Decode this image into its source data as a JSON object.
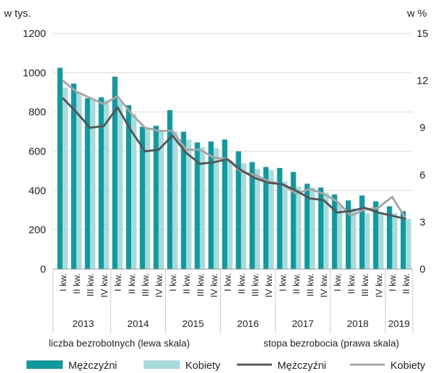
{
  "chart_data": {
    "type": "bar+line",
    "left_axis_label": "w tys.",
    "right_axis_label": "w %",
    "left_ylim": [
      0,
      1200
    ],
    "left_ticks": [
      "0",
      "200",
      "400",
      "600",
      "800",
      "1000",
      "1200"
    ],
    "right_ylim": [
      0,
      15
    ],
    "right_ticks": [
      "0",
      "3",
      "6",
      "9",
      "12",
      "15"
    ],
    "grid": true,
    "quarters": [
      "I kw.",
      "II kw.",
      "III kw.",
      "IV kw.",
      "I kw.",
      "II kw.",
      "III kw.",
      "IV kw.",
      "I kw.",
      "II kw.",
      "III kw.",
      "IV kw.",
      "I kw.",
      "II kw.",
      "III kw.",
      "IV kw.",
      "I kw.",
      "II kw.",
      "III kw.",
      "IV kw.",
      "I kw.",
      "II kw.",
      "III kw.",
      "IV kw.",
      "I kw.",
      "II kw."
    ],
    "years": [
      {
        "label": "2013",
        "quarters": 4
      },
      {
        "label": "2014",
        "quarters": 4
      },
      {
        "label": "2015",
        "quarters": 4
      },
      {
        "label": "2016",
        "quarters": 4
      },
      {
        "label": "2017",
        "quarters": 4
      },
      {
        "label": "2018",
        "quarters": 4
      },
      {
        "label": "2019",
        "quarters": 2
      }
    ],
    "bar_series": [
      {
        "name": "Mężczyźni",
        "color": "#0f9aa0",
        "values": [
          1025,
          945,
          870,
          875,
          980,
          835,
          725,
          730,
          810,
          700,
          645,
          650,
          660,
          600,
          545,
          520,
          515,
          495,
          435,
          415,
          380,
          350,
          375,
          345,
          320,
          295
        ]
      },
      {
        "name": "Kobiety",
        "color": "#a7dcdc",
        "values": [
          925,
          900,
          865,
          860,
          860,
          790,
          720,
          705,
          700,
          660,
          620,
          615,
          555,
          540,
          510,
          505,
          445,
          420,
          415,
          390,
          330,
          310,
          285,
          290,
          285,
          255
        ]
      }
    ],
    "line_series": [
      {
        "name": "Mężczyźni",
        "color": "#555555",
        "values": [
          10.9,
          10.0,
          9.0,
          9.1,
          10.3,
          8.8,
          7.5,
          7.6,
          8.5,
          7.4,
          6.7,
          6.8,
          7.0,
          6.3,
          5.8,
          5.5,
          5.4,
          5.0,
          4.5,
          4.4,
          3.6,
          3.7,
          3.9,
          3.6,
          3.4,
          3.2
        ]
      },
      {
        "name": "Kobiety",
        "color": "#a6a6a6",
        "values": [
          12.0,
          11.3,
          10.9,
          10.5,
          11.0,
          9.9,
          9.0,
          8.8,
          8.8,
          7.6,
          7.6,
          7.1,
          7.0,
          6.2,
          6.0,
          5.6,
          5.4,
          4.8,
          5.1,
          4.8,
          4.3,
          3.4,
          3.8,
          3.9,
          4.6,
          3.2
        ]
      }
    ],
    "left_scale_caption": "liczba bezrobotnych (lewa skala)",
    "right_scale_caption": "stopa bezrobocia (prawa skala)"
  }
}
